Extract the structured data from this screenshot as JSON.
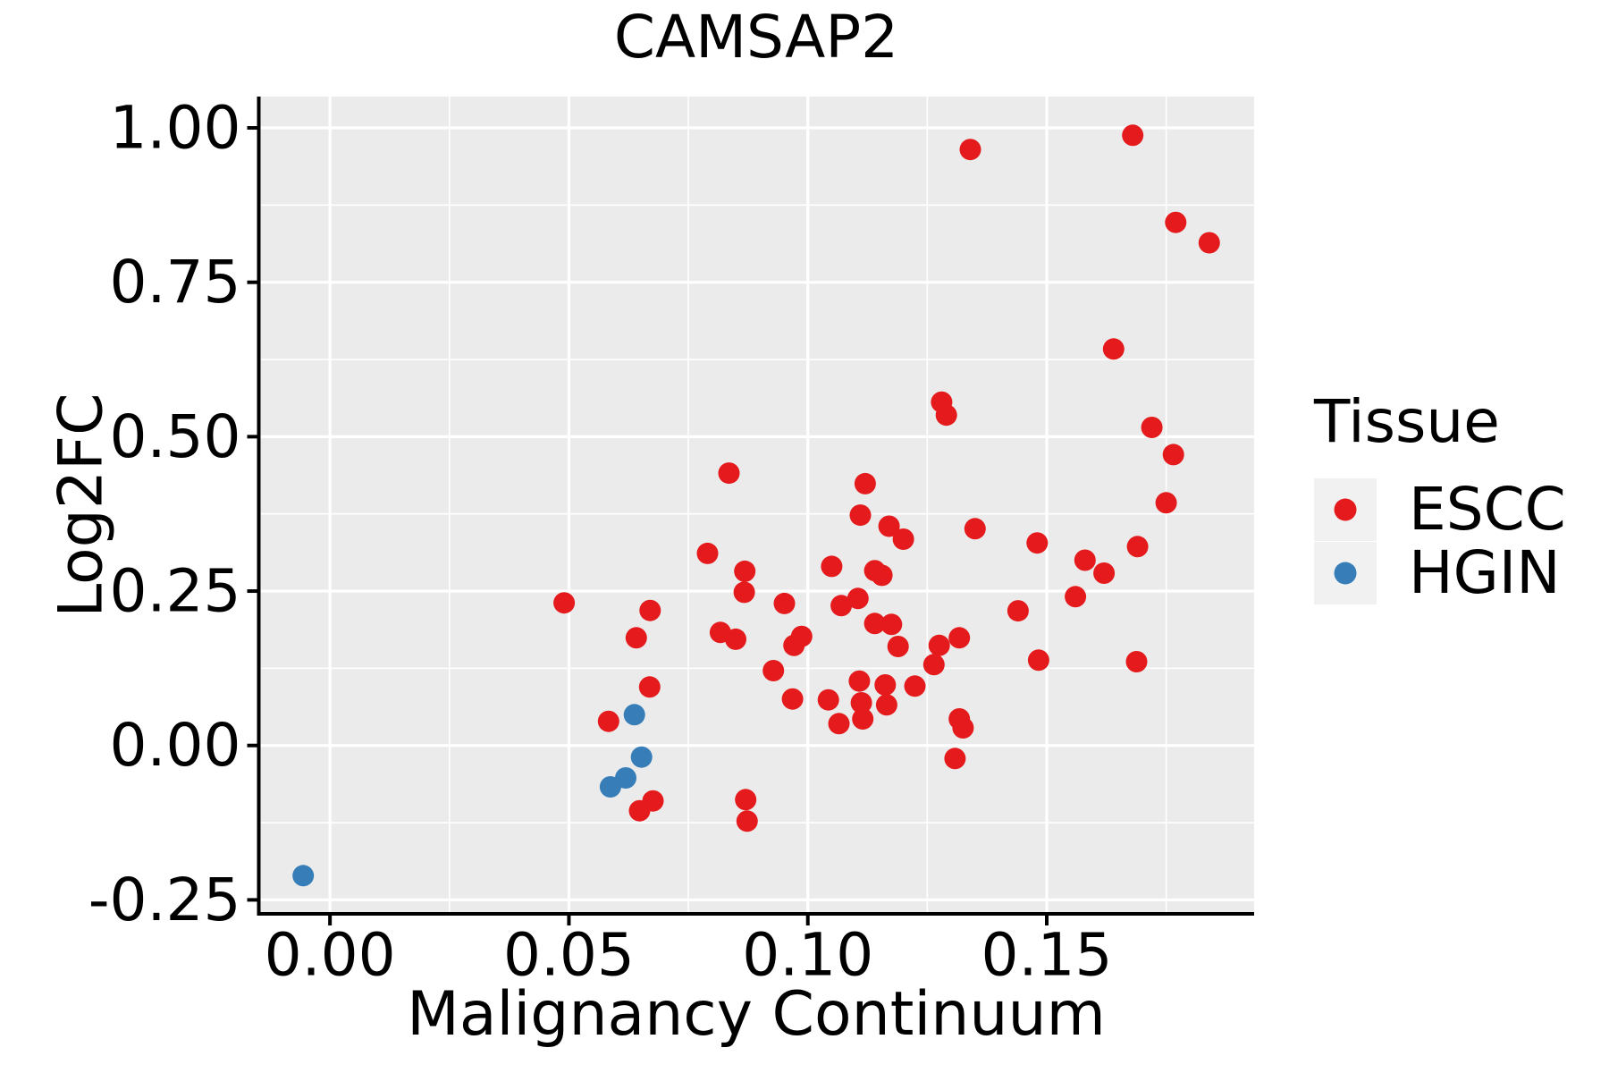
{
  "title": "CAMSAP2",
  "legend": {
    "title": "Tissue",
    "items": [
      {
        "label": "ESCC",
        "color": "#E41A1C"
      },
      {
        "label": "HGIN",
        "color": "#377EB8"
      }
    ]
  },
  "colors": {
    "panel_bg": "#EBEBEB",
    "grid_major": "#FFFFFF",
    "grid_minor": "#FFFFFF",
    "axis_line": "#000000",
    "tick_text": "#000000",
    "legend_key_bg": "#F1F1F1",
    "escc": "#E41A1C",
    "hgin": "#377EB8"
  },
  "chart_data": {
    "type": "scatter",
    "title": "CAMSAP2",
    "xlabel": "Malignancy Continuum",
    "ylabel": "Log2FC",
    "xlim": [
      -0.0149,
      0.1934
    ],
    "ylim": [
      -0.2726,
      1.0507
    ],
    "grid": true,
    "legend_position": "right",
    "legend_title": "Tissue",
    "x_ticks": {
      "values": [
        0,
        0.05,
        0.1,
        0.15
      ],
      "labels": [
        "0.00",
        "0.05",
        "0.10",
        "0.15"
      ]
    },
    "x_minor_ticks": [
      0.025,
      0.075,
      0.125,
      0.175
    ],
    "y_ticks": {
      "values": [
        -0.25,
        0,
        0.25,
        0.5,
        0.75,
        1.0
      ],
      "labels": [
        "-0.25",
        "0.00",
        "0.25",
        "0.50",
        "0.75",
        "1.00"
      ]
    },
    "y_minor_ticks": [
      -0.125,
      0.125,
      0.375,
      0.625,
      0.875
    ],
    "point_radius_px": 12,
    "series": [
      {
        "name": "ESCC",
        "color": "#E41A1C",
        "points": [
          [
            0.134,
            0.965
          ],
          [
            0.168,
            0.988
          ],
          [
            0.177,
            0.847
          ],
          [
            0.184,
            0.814
          ],
          [
            0.164,
            0.642
          ],
          [
            0.172,
            0.515
          ],
          [
            0.1765,
            0.471
          ],
          [
            0.175,
            0.393
          ],
          [
            0.128,
            0.556
          ],
          [
            0.129,
            0.535
          ],
          [
            0.112,
            0.424
          ],
          [
            0.111,
            0.373
          ],
          [
            0.117,
            0.355
          ],
          [
            0.12,
            0.334
          ],
          [
            0.135,
            0.351
          ],
          [
            0.148,
            0.328
          ],
          [
            0.169,
            0.322
          ],
          [
            0.158,
            0.3
          ],
          [
            0.162,
            0.279
          ],
          [
            0.105,
            0.29
          ],
          [
            0.114,
            0.283
          ],
          [
            0.1155,
            0.2755
          ],
          [
            0.156,
            0.241
          ],
          [
            0.107,
            0.2265
          ],
          [
            0.1105,
            0.238
          ],
          [
            0.144,
            0.218
          ],
          [
            0.114,
            0.1975
          ],
          [
            0.1175,
            0.196
          ],
          [
            0.0835,
            0.441
          ],
          [
            0.079,
            0.311
          ],
          [
            0.0868,
            0.282
          ],
          [
            0.0867,
            0.248
          ],
          [
            0.0951,
            0.23
          ],
          [
            0.049,
            0.231
          ],
          [
            0.067,
            0.2187
          ],
          [
            0.0641,
            0.1744
          ],
          [
            0.0817,
            0.183
          ],
          [
            0.0849,
            0.172
          ],
          [
            0.0971,
            0.1621
          ],
          [
            0.0987,
            0.1766
          ],
          [
            0.1189,
            0.1603
          ],
          [
            0.1275,
            0.1621
          ],
          [
            0.1317,
            0.1744
          ],
          [
            0.1264,
            0.1309
          ],
          [
            0.1483,
            0.1381
          ],
          [
            0.1688,
            0.1357
          ],
          [
            0.0928,
            0.1212
          ],
          [
            0.1108,
            0.1043
          ],
          [
            0.1162,
            0.098
          ],
          [
            0.1224,
            0.0961
          ],
          [
            0.0968,
            0.0753
          ],
          [
            0.1043,
            0.0738
          ],
          [
            0.1165,
            0.0657
          ],
          [
            0.1112,
            0.0691
          ],
          [
            0.1115,
            0.043
          ],
          [
            0.1065,
            0.0353
          ],
          [
            0.1317,
            0.043
          ],
          [
            0.1325,
            0.0285
          ],
          [
            0.1308,
            -0.0211
          ],
          [
            0.0669,
            0.0947
          ],
          [
            0.0583,
            0.0391
          ],
          [
            0.0676,
            -0.0898
          ],
          [
            0.0648,
            -0.1057
          ],
          [
            0.087,
            -0.0877
          ],
          [
            0.0873,
            -0.1225
          ]
        ]
      },
      {
        "name": "HGIN",
        "color": "#377EB8",
        "points": [
          [
            -0.0056,
            -0.2108
          ],
          [
            0.0637,
            0.0498
          ],
          [
            0.0652,
            -0.0188
          ],
          [
            0.0619,
            -0.0526
          ],
          [
            0.0587,
            -0.067
          ]
        ]
      }
    ]
  }
}
